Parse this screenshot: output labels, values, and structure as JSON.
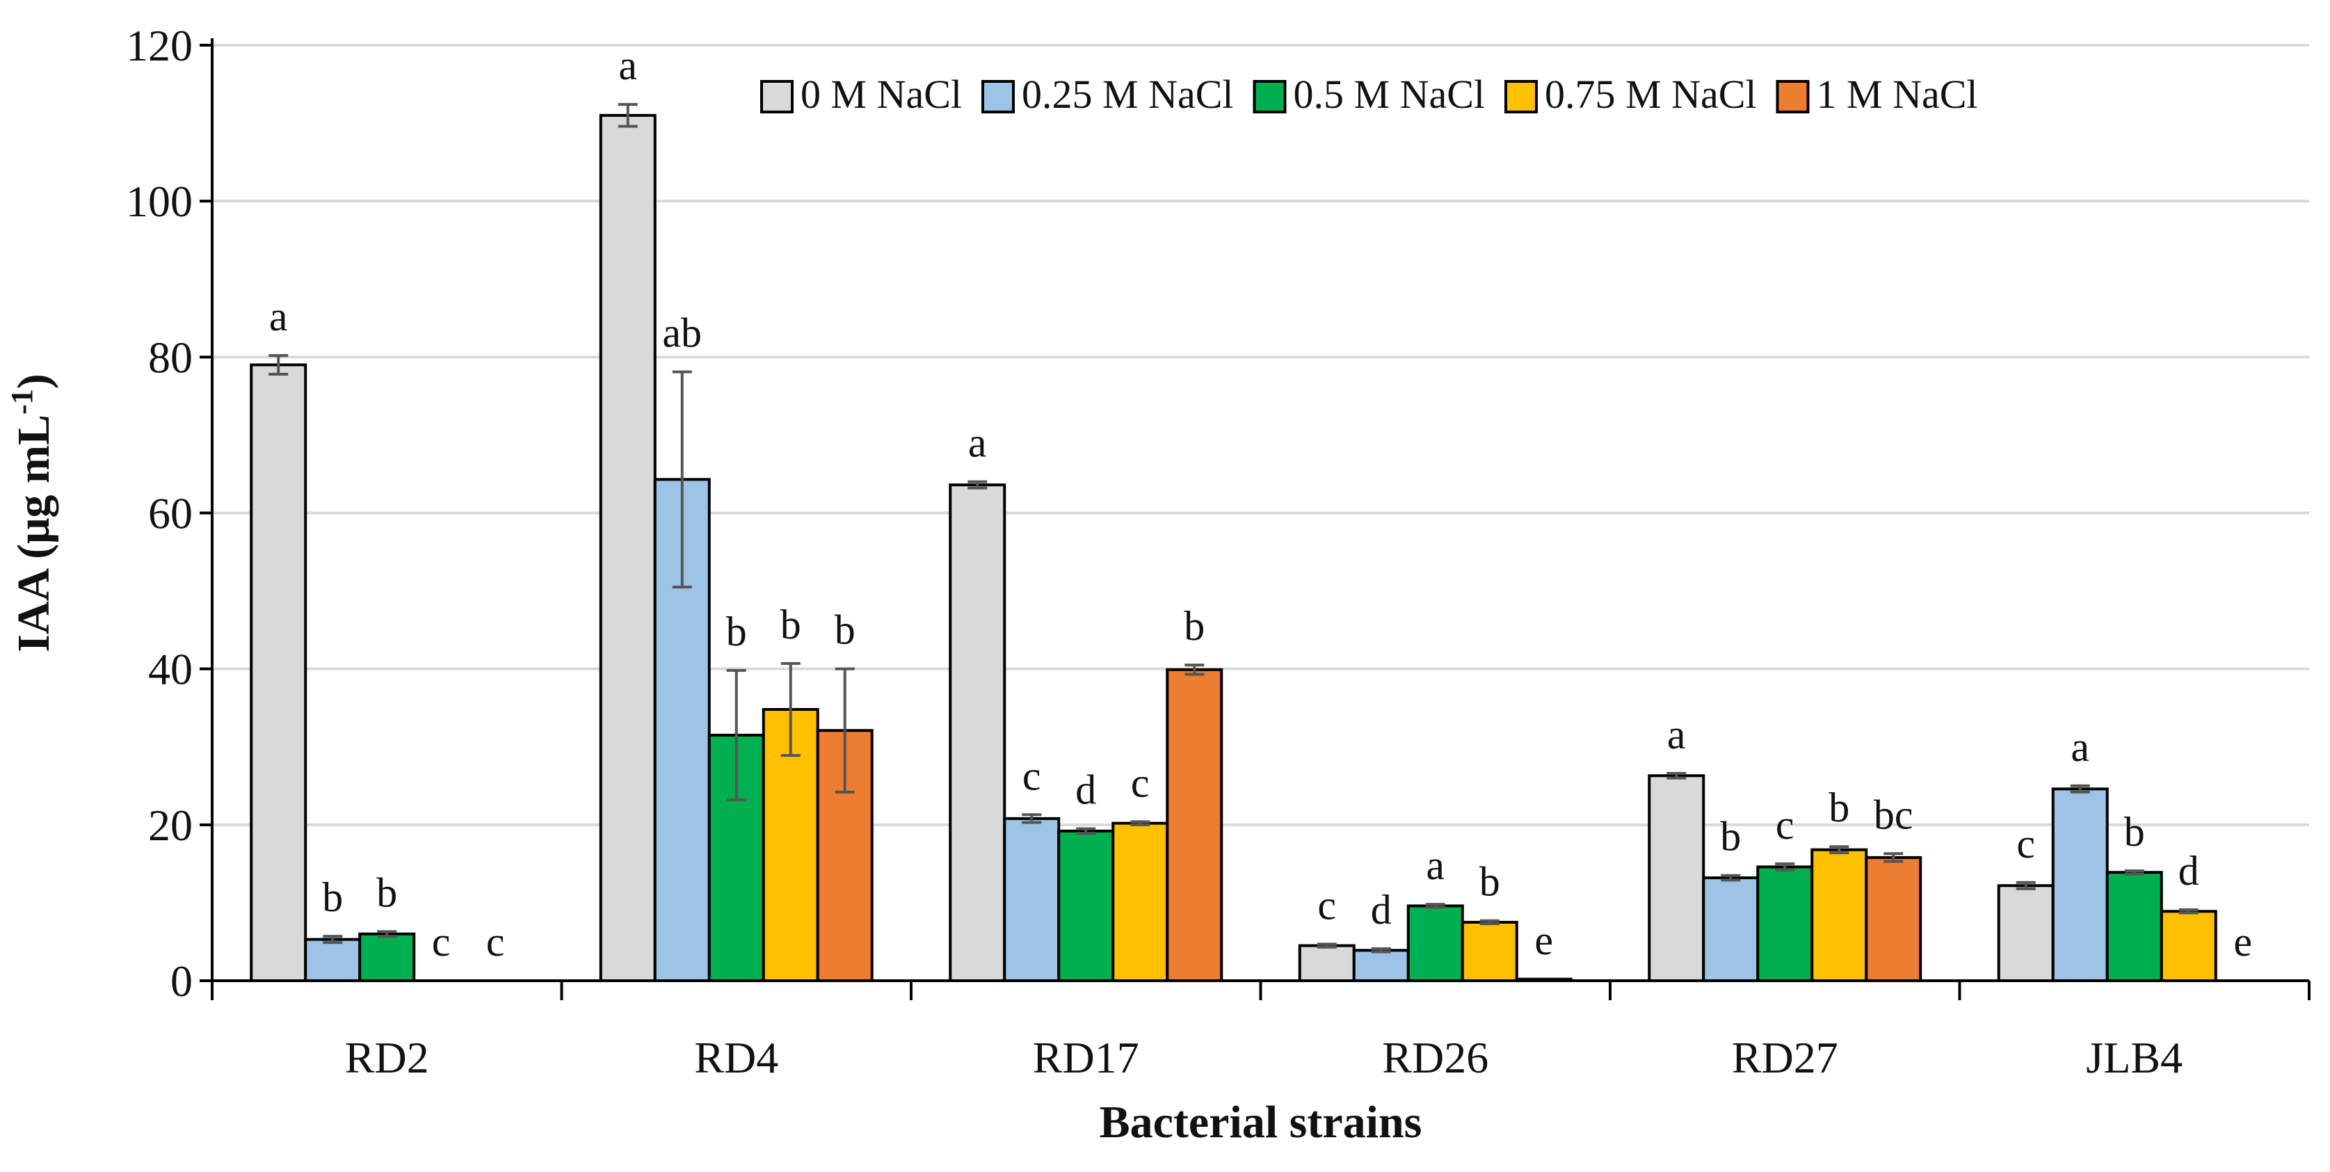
{
  "chart_data": {
    "type": "bar",
    "title": "",
    "xlabel": "Bacterial strains",
    "ylabel": "IAA (μg mL-1)",
    "ylabel_parts": {
      "main": "IAA (μg mL",
      "sup": "-1",
      "close": ")"
    },
    "ylim": [
      0,
      120
    ],
    "yticks": [
      0,
      20,
      40,
      60,
      80,
      100,
      120
    ],
    "grid": true,
    "legend_position": "top-right",
    "categories": [
      "RD2",
      "RD4",
      "RD17",
      "RD26",
      "RD27",
      "JLB4"
    ],
    "series": [
      {
        "name": "0 M NaCl",
        "color": "#d9d9d9",
        "values": [
          79.0,
          111.0,
          63.6,
          4.5,
          26.3,
          12.2
        ],
        "errors": [
          1.2,
          1.4,
          0.4,
          0.2,
          0.3,
          0.4
        ],
        "labels": [
          "a",
          "a",
          "a",
          "c",
          "a",
          "c"
        ]
      },
      {
        "name": "0.25 M NaCl",
        "color": "#9dc3e6",
        "values": [
          5.3,
          64.3,
          20.8,
          3.9,
          13.2,
          24.6
        ],
        "errors": [
          0.4,
          13.8,
          0.5,
          0.2,
          0.3,
          0.4
        ],
        "labels": [
          "b",
          "ab",
          "c",
          "d",
          "b",
          "a"
        ]
      },
      {
        "name": "0.5 M NaCl",
        "color": "#00b050",
        "values": [
          6.0,
          31.5,
          19.2,
          9.6,
          14.6,
          13.9
        ],
        "errors": [
          0.3,
          8.3,
          0.3,
          0.2,
          0.4,
          0.2
        ],
        "labels": [
          "b",
          "b",
          "d",
          "a",
          "c",
          "b"
        ]
      },
      {
        "name": "0.75 M NaCl",
        "color": "#ffc000",
        "values": [
          0,
          34.8,
          20.2,
          7.5,
          16.8,
          8.9
        ],
        "errors": [
          0,
          5.9,
          0.2,
          0.2,
          0.4,
          0.2
        ],
        "labels": [
          "c",
          "b",
          "c",
          "b",
          "b",
          "d"
        ]
      },
      {
        "name": "1 M NaCl",
        "color": "#ed7d31",
        "values": [
          0,
          32.1,
          39.9,
          0.2,
          15.8,
          0
        ],
        "errors": [
          0,
          7.9,
          0.6,
          0.0,
          0.5,
          0
        ],
        "labels": [
          "c",
          "b",
          "b",
          "e",
          "bc",
          "e"
        ]
      }
    ]
  }
}
